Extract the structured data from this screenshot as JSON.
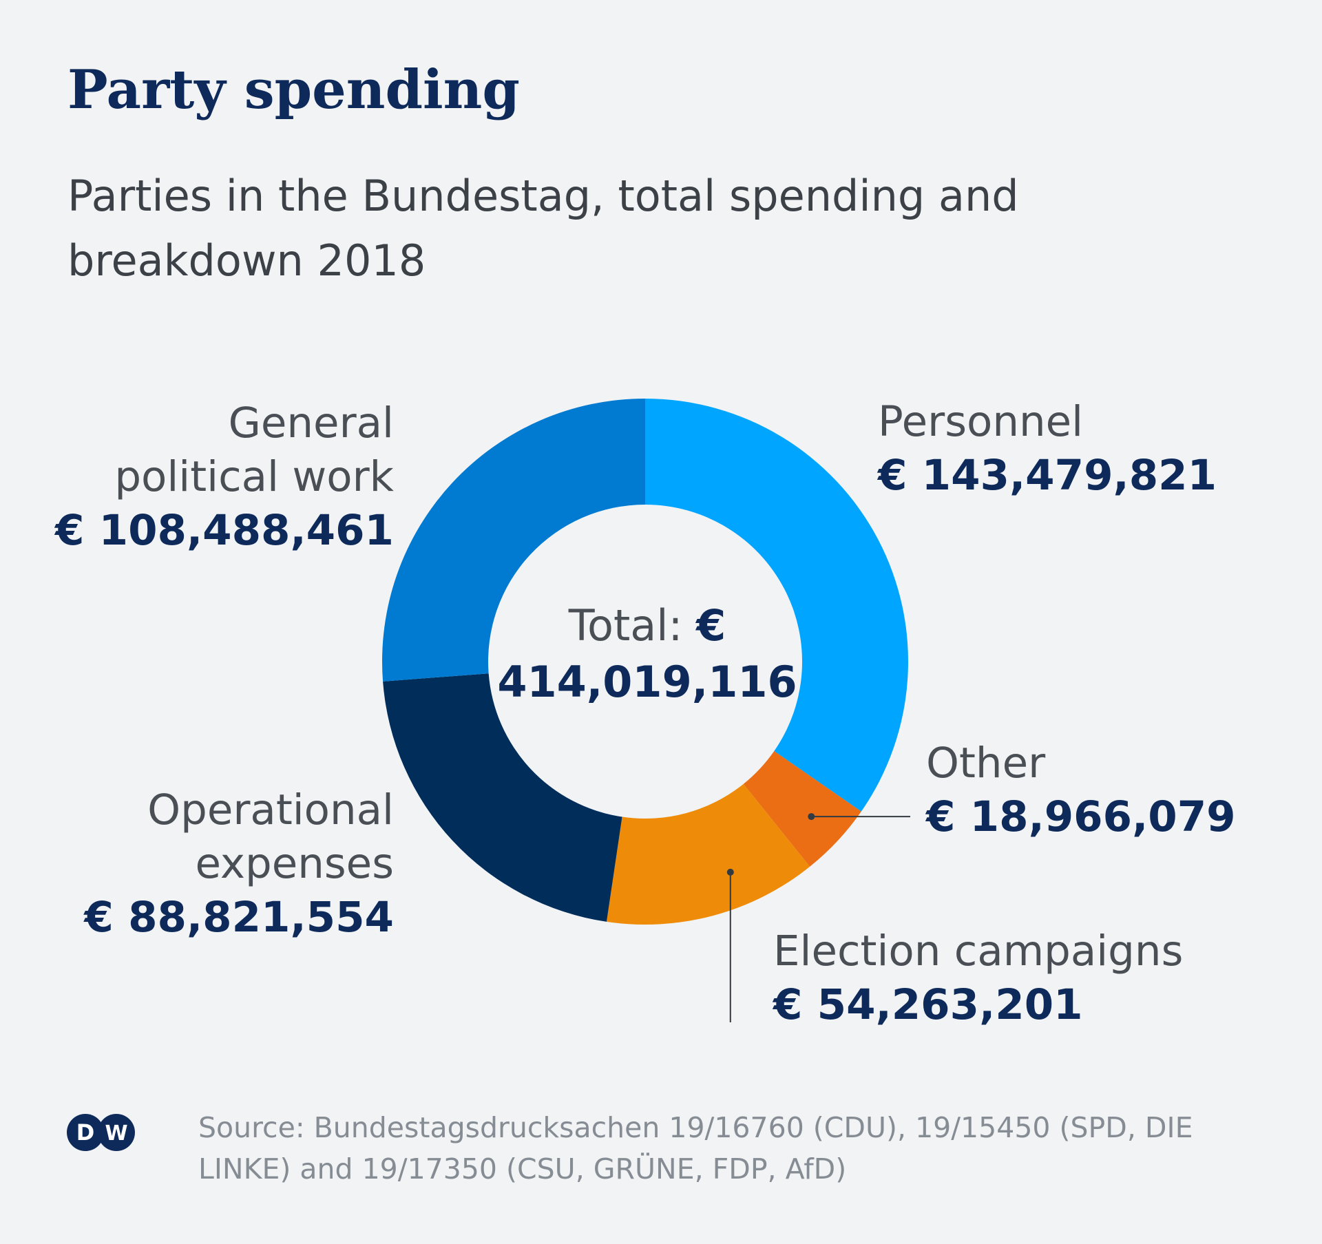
{
  "title": "Party spending",
  "subtitle": "Parties in the Bundestag, total spending and breakdown 2018",
  "center": {
    "label": "Total:",
    "currency": "€",
    "value": "414,019,116"
  },
  "chart_data": {
    "type": "pie",
    "total": 414019116,
    "slices": [
      {
        "name": "Personnel",
        "value": 143479821,
        "label": "€ 143,479,821",
        "color": "#00a5ff"
      },
      {
        "name": "Other",
        "value": 18966079,
        "label": "€ 18,966,079",
        "color": "#eb6e14"
      },
      {
        "name": "Election campaigns",
        "value": 54263201,
        "label": "€ 54,263,201",
        "color": "#ee8c0a"
      },
      {
        "name": "Operational expenses",
        "value": 88821554,
        "label": "€ 88,821,554",
        "color": "#002d5a"
      },
      {
        "name": "General political work",
        "value": 108488461,
        "label": "€ 108,488,461",
        "color": "#007bd1"
      }
    ]
  },
  "labels": {
    "personnel": {
      "name": "Personnel",
      "value": "€ 143,479,821"
    },
    "other": {
      "name": "Other",
      "value": "€ 18,966,079"
    },
    "election": {
      "name": "Election campaigns",
      "value": "€ 54,263,201"
    },
    "operational": {
      "name1": "Operational",
      "name2": "expenses",
      "value": "€ 88,821,554"
    },
    "general": {
      "name1": "General",
      "name2": "political work",
      "value": "€ 108,488,461"
    }
  },
  "footer": {
    "logo_text": "DW",
    "logo_icon": "dw-logo-icon",
    "source": "Source: Bundestagsdrucksachen 19/16760 (CDU), 19/15450 (SPD, DIE LINKE) and 19/17350 (CSU, GRÜNE, FDP, AfD)"
  }
}
